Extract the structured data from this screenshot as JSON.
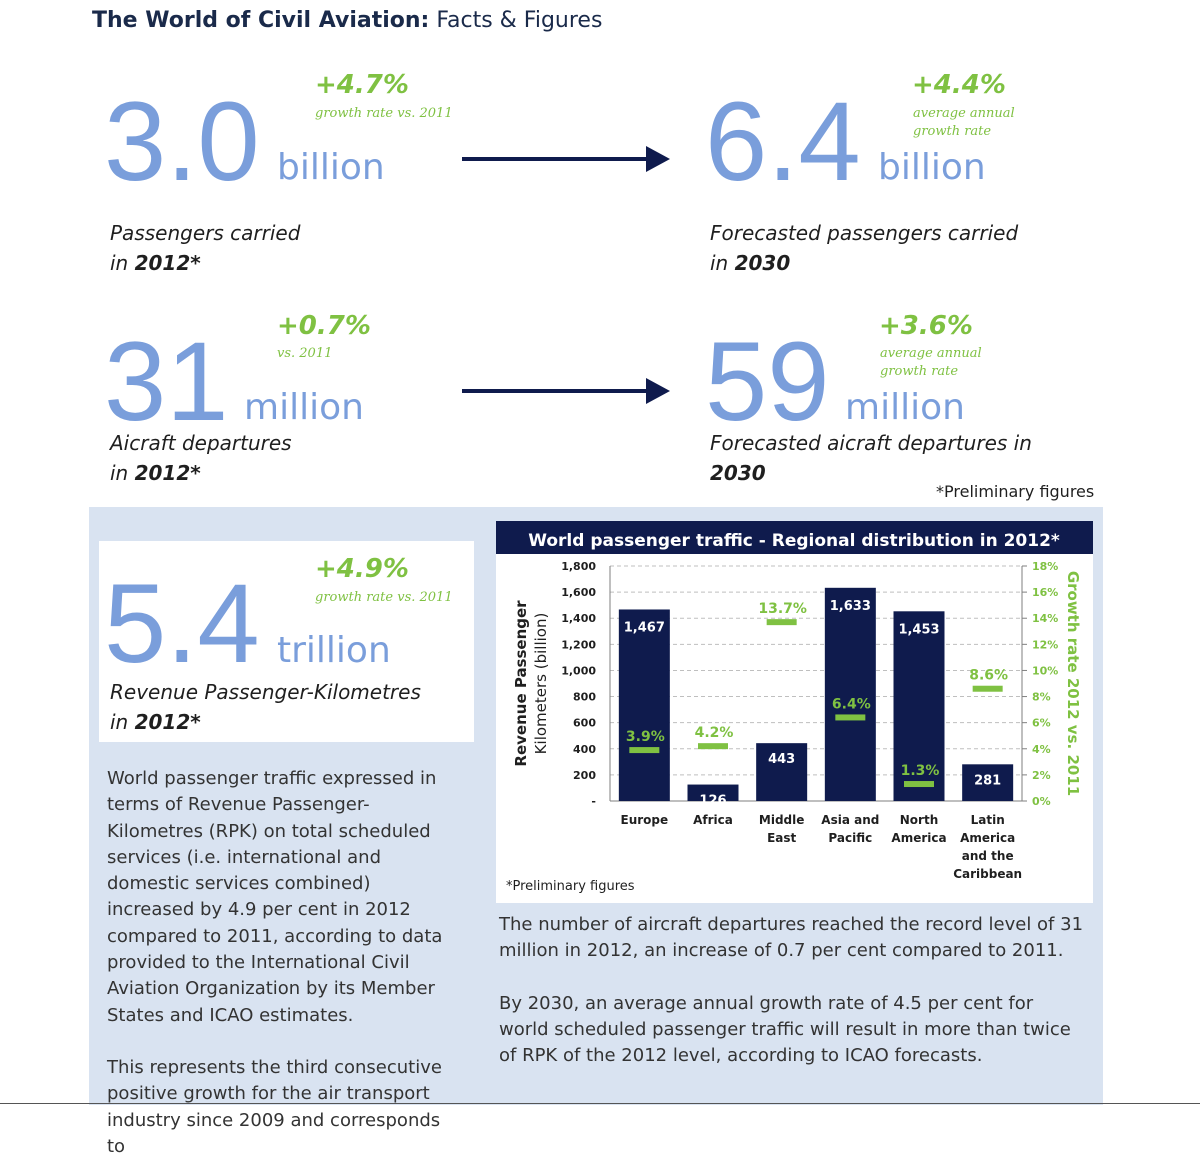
{
  "header": {
    "title_bold": "The World of Civil Aviation:",
    "title_rest": " Facts & Figures"
  },
  "stats": {
    "passengers_2012": {
      "value": "3.0",
      "unit": "billion",
      "growth": "+4.7%",
      "growth_note": "growth rate vs. 2011",
      "label_line1": "Passengers carried",
      "label_prefix": "in ",
      "label_year": "2012*"
    },
    "passengers_2030": {
      "value": "6.4",
      "unit": "billion",
      "growth": "+4.4%",
      "growth_note_line1": "average annual",
      "growth_note_line2": "growth rate",
      "label_line1": "Forecasted passengers carried",
      "label_prefix": "in ",
      "label_year": "2030"
    },
    "departures_2012": {
      "value": "31",
      "unit": "million",
      "growth": "+0.7%",
      "growth_note": "vs. 2011",
      "label_line1": "Aicraft departures",
      "label_prefix": "in ",
      "label_year": "2012*"
    },
    "departures_2030": {
      "value": "59",
      "unit": "million",
      "growth": "+3.6%",
      "growth_note_line1": "average annual",
      "growth_note_line2": "growth rate",
      "label_line1": "Forecasted aicraft departures in",
      "label_year": "2030"
    },
    "preliminary_note": "*Preliminary figures",
    "rpk_2012": {
      "value": "5.4",
      "unit": "trillion",
      "growth": "+4.9%",
      "growth_note": "growth rate vs. 2011",
      "label_line1": "Revenue Passenger-Kilometres",
      "label_prefix": "in ",
      "label_year": "2012*"
    }
  },
  "text": {
    "left_p1": "World passenger traffic expressed in terms of Revenue Passenger-Kilometres (RPK) on total scheduled services (i.e. international and domestic services combined) increased by 4.9 per cent in 2012 compared to 2011, according to data provided to the International Civil Aviation Organization by its Member States and ICAO estimates.",
    "left_p2": "This represents the third consecutive positive growth for the air transport industry since 2009 and corresponds to",
    "right_p1": "The number of aircraft departures reached the record level of 31 million in 2012, an increase of 0.7 per cent compared to 2011.",
    "right_p2": "By 2030, an average annual growth rate of 4.5 per cent for world scheduled passenger traffic will result in more than twice of RPK of the 2012 level, according to ICAO forecasts."
  },
  "colors": {
    "bar": "#0f1b4d",
    "growth_marker": "#7fc142",
    "big_numbers": "#7a9edb",
    "panel_bg": "#d9e3f1"
  },
  "chart_data": {
    "type": "bar",
    "title": "World passenger traffic - Regional distribution in 2012*",
    "ylabel_line1": "Revenue Passenger",
    "ylabel_line2": "Kilometers (billion)",
    "y2label": "Growth rate 2012 vs. 2011",
    "ylim": [
      0,
      1800
    ],
    "y2lim": [
      0,
      18
    ],
    "yticks": [
      "-",
      "200",
      "400",
      "600",
      "800",
      "1,000",
      "1,200",
      "1,400",
      "1,600",
      "1,800"
    ],
    "y2ticks": [
      "0%",
      "2%",
      "4%",
      "6%",
      "8%",
      "10%",
      "12%",
      "14%",
      "16%",
      "18%"
    ],
    "grid": true,
    "categories": [
      [
        "Europe"
      ],
      [
        "Africa"
      ],
      [
        "Middle",
        "East"
      ],
      [
        "Asia and",
        "Pacific"
      ],
      [
        "North",
        "America"
      ],
      [
        "Latin",
        "America",
        "and the",
        "Caribbean"
      ]
    ],
    "series": [
      {
        "values": [
          1467,
          126,
          443,
          1633,
          1453,
          281
        ],
        "labels": [
          "1,467",
          "126",
          "443",
          "1,633",
          "1,453",
          "281"
        ]
      },
      {
        "values": [
          3.9,
          4.2,
          13.7,
          6.4,
          1.3,
          8.6
        ],
        "labels": [
          "3.9%",
          "4.2%",
          "13.7%",
          "6.4%",
          "1.3%",
          "8.6%"
        ]
      }
    ],
    "note": "*Preliminary figures"
  }
}
